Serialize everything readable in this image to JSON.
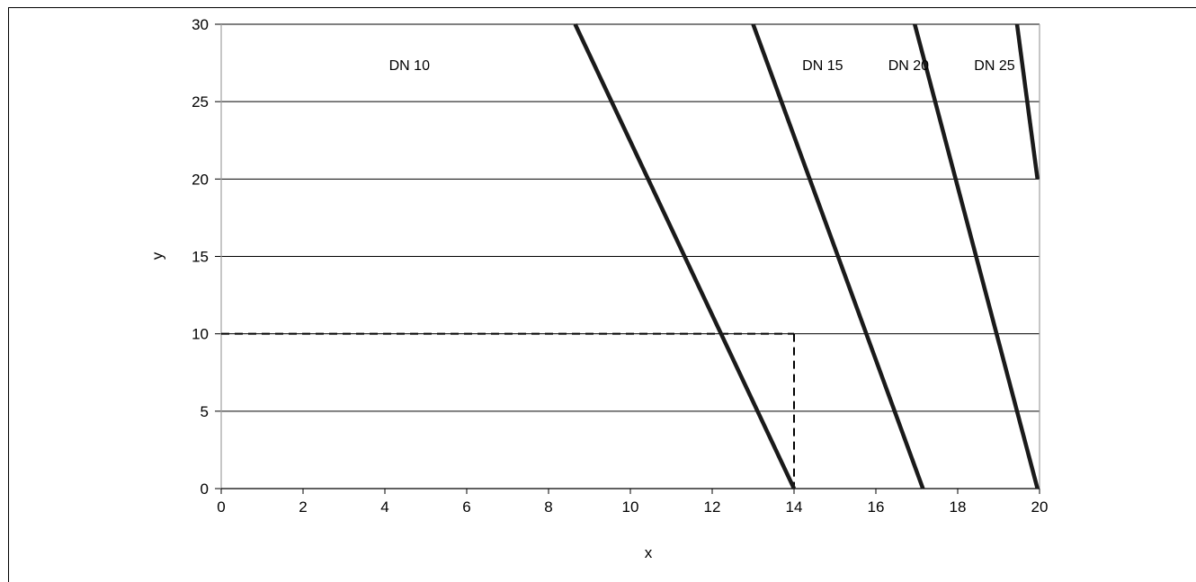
{
  "chart_data": {
    "type": "line",
    "xlabel": "x",
    "ylabel": "y",
    "xlim": [
      0,
      20
    ],
    "ylim": [
      0,
      30
    ],
    "x_ticks": [
      0,
      2,
      4,
      6,
      8,
      10,
      12,
      14,
      16,
      18,
      20
    ],
    "y_ticks": [
      0,
      5,
      10,
      15,
      20,
      25,
      30
    ],
    "grid": "horizontal",
    "region_labels": [
      {
        "text": "DN 10",
        "x": 4.6,
        "y": 27.4
      },
      {
        "text": "DN 15",
        "x": 14.7,
        "y": 27.4
      },
      {
        "text": "DN 20",
        "x": 16.8,
        "y": 27.4
      },
      {
        "text": "DN 25",
        "x": 18.9,
        "y": 27.4
      }
    ],
    "series": [
      {
        "points": [
          [
            8.65,
            30
          ],
          [
            14.0,
            0
          ]
        ]
      },
      {
        "points": [
          [
            13.0,
            30
          ],
          [
            17.15,
            0
          ]
        ]
      },
      {
        "points": [
          [
            16.95,
            30
          ],
          [
            19.95,
            0
          ]
        ]
      },
      {
        "points": [
          [
            19.45,
            30
          ],
          [
            19.95,
            20
          ]
        ]
      }
    ],
    "reference_lines": [
      {
        "style": "dashed",
        "points": [
          [
            0,
            10
          ],
          [
            14.0,
            10
          ]
        ]
      },
      {
        "style": "dashed",
        "points": [
          [
            14.0,
            10
          ],
          [
            14.0,
            0
          ]
        ]
      }
    ],
    "colors": {
      "lines": "#1a1a1a",
      "grid": "#000000",
      "axes": "#a0a0a0"
    }
  }
}
